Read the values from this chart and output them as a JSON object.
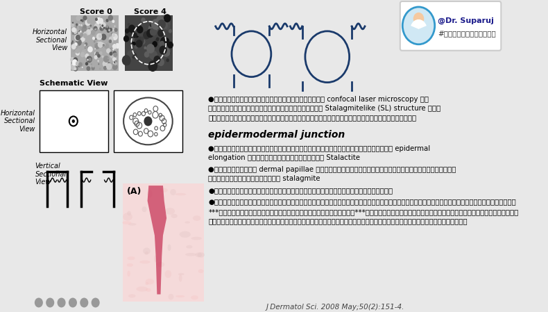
{
  "bg_color": "#e8e8e8",
  "text_color": "#000000",
  "bullet1": "●ลักษณะจากการส่องกล้องพิเศษ confocal laser microscopy พบ\nลักษณะที่คล้ายหินงอกหินย้อย Stalagmitelike (SL) structure ที่\nบริเวณรอยต่อระหว่างหนังแท้และหนังกำพร้าหนังกำพร้า",
  "epidermodermal": "epidermodermal junction",
  "bullet2": "●โดยหนังกำพร้าจะมีการยื่นลงไปถึงชั้นหนังแท้ epidermal\nelongation ลักษณะคล้ายหินย้อย Stalactite",
  "bullet3": "●และหนังแท้ dermal papillae จะยื่นขึ้นไปถึงชั้นหนังกำพร้าเป็น\nลักษณะคล้ายหินงอก stalagmite",
  "bullet4": "●ซึ่งเป็นลักษณะเฉพาะที่พบในภาวะรูขุมขนกว้าง",
  "bullet5": "●นอกจากนี้อาจพบเส้นใยในชั้นหนังแท้ที่เพิ่มขึ้นซึ่งคล้ายกับแผลเป็นหลุมสิว",
  "bullet6": "***ซึ่งเป็นลักษณะที่คล้ายกับหลุมสิว***จึงเป็นเหตุผลที่การใช้เลเซอร์ต่างๆใน\nการดูแลรักษาหลุมสิวสามารถนำมาใช้ดูแลภาวะรูขุมขนกว้างดีขึ้นได้",
  "citation": "J Dermatol Sci. 2008 May;50(2):151-4.",
  "score0_label": "Score 0",
  "score4_label": "Score 4",
  "hsv_label": "Horizontal\nSectional\nView",
  "schematic_label": "Schematic View",
  "hsv2_label": "Horizontal\nSectional\nView",
  "vsv_label": "Vertical\nSectional\nView",
  "a_label": "(A)",
  "doctor_name": "@Dr. Suparuj",
  "doctor_tag": "#หมอรุจชวนคุย",
  "diagram_color": "#1a3a6b",
  "dark_gray": "#555555",
  "badge_bg": "#ffffff"
}
